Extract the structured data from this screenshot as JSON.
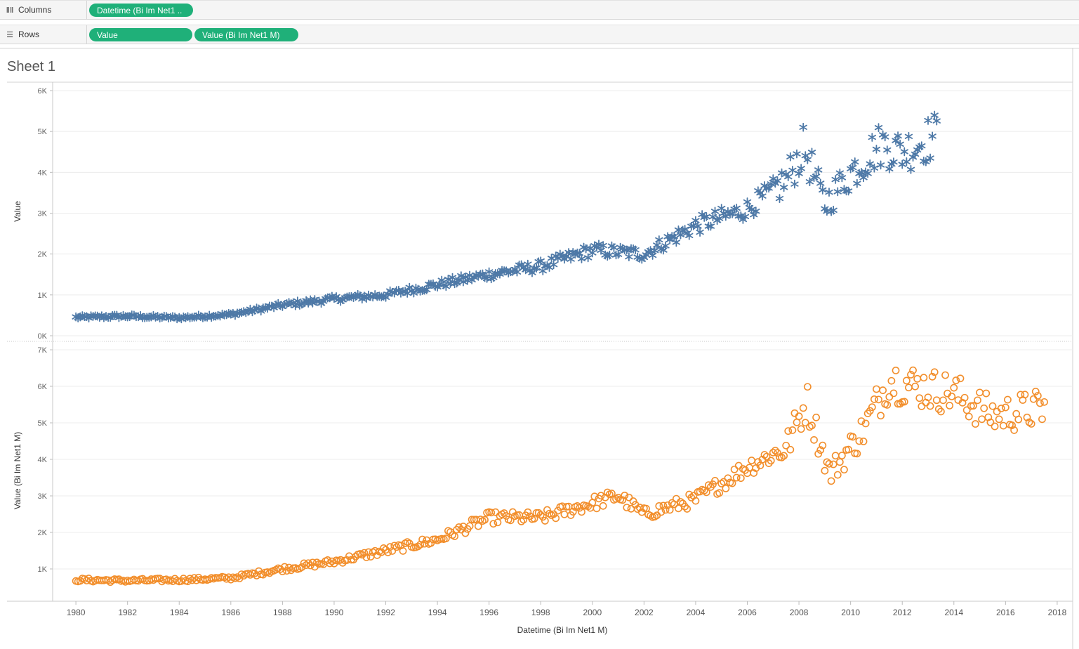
{
  "shelves": {
    "columns": {
      "label": "Columns",
      "icon": "columns-icon",
      "pills": [
        "Datetime (Bi Im Net1 .."
      ]
    },
    "rows": {
      "label": "Rows",
      "icon": "rows-icon",
      "pills": [
        "Value",
        "Value (Bi Im Net1 M)"
      ]
    }
  },
  "sheet": {
    "title": "Sheet 1"
  },
  "colors": {
    "top_series": "#4e79a7",
    "bottom_series": "#f28e2b",
    "pill": "#1fb079",
    "grid": "#ececec"
  },
  "chart_data": [
    {
      "type": "scatter",
      "marker": "asterisk",
      "title": "",
      "xlabel": "",
      "ylabel": "Value",
      "xlim": [
        1979.1,
        2018.6
      ],
      "ylim": [
        0,
        6000
      ],
      "yticks": [
        0,
        1000,
        2000,
        3000,
        4000,
        5000,
        6000
      ],
      "ytick_labels": [
        "0K",
        "1K",
        "2K",
        "3K",
        "4K",
        "5K",
        "6K"
      ],
      "grid": true,
      "anchors": {
        "x": [
          1980.0,
          1982.0,
          1984.0,
          1986.0,
          1988.0,
          1990.0,
          1992.0,
          1994.0,
          1996.0,
          1998.0,
          2000.0,
          2002.0,
          2004.0,
          2006.0,
          2007.5,
          2008.2,
          2009.0,
          2010.0,
          2011.2,
          2012.0,
          2013.3
        ],
        "y": [
          450,
          480,
          440,
          520,
          750,
          900,
          1000,
          1250,
          1500,
          1700,
          2100,
          2000,
          2700,
          3100,
          3800,
          4600,
          3200,
          4000,
          4700,
          4500,
          4900
        ]
      },
      "x_range": [
        1980.0,
        2013.3
      ]
    },
    {
      "type": "scatter",
      "marker": "circle",
      "title": "",
      "xlabel": "Datetime (Bi Im Net1 M)",
      "ylabel": "Value (Bi Im Net1 M)",
      "xlim": [
        1979.1,
        2018.6
      ],
      "ylim": [
        0,
        7000
      ],
      "yticks": [
        1000,
        2000,
        3000,
        4000,
        5000,
        6000,
        7000
      ],
      "ytick_labels": [
        "1K",
        "2K",
        "3K",
        "4K",
        "5K",
        "6K",
        "7K"
      ],
      "xticks": [
        1980,
        1982,
        1984,
        1986,
        1988,
        1990,
        1992,
        1994,
        1996,
        1998,
        2000,
        2002,
        2004,
        2006,
        2008,
        2010,
        2012,
        2014,
        2016,
        2018
      ],
      "grid": true,
      "anchors": {
        "x": [
          1980.0,
          1982.0,
          1984.0,
          1986.0,
          1988.0,
          1990.0,
          1992.0,
          1994.0,
          1996.0,
          1998.0,
          2000.0,
          2001.0,
          2002.0,
          2004.0,
          2006.0,
          2007.5,
          2008.3,
          2009.2,
          2010.5,
          2011.5,
          2012.5,
          2014.0,
          2015.5,
          2017.5
        ],
        "y": [
          700,
          680,
          700,
          750,
          1000,
          1200,
          1500,
          1800,
          2400,
          2400,
          2800,
          3000,
          2500,
          2900,
          3800,
          4300,
          5600,
          3600,
          4800,
          6200,
          6000,
          5800,
          5200,
          5400
        ]
      },
      "x_range": [
        1980.0,
        2017.5
      ]
    }
  ]
}
